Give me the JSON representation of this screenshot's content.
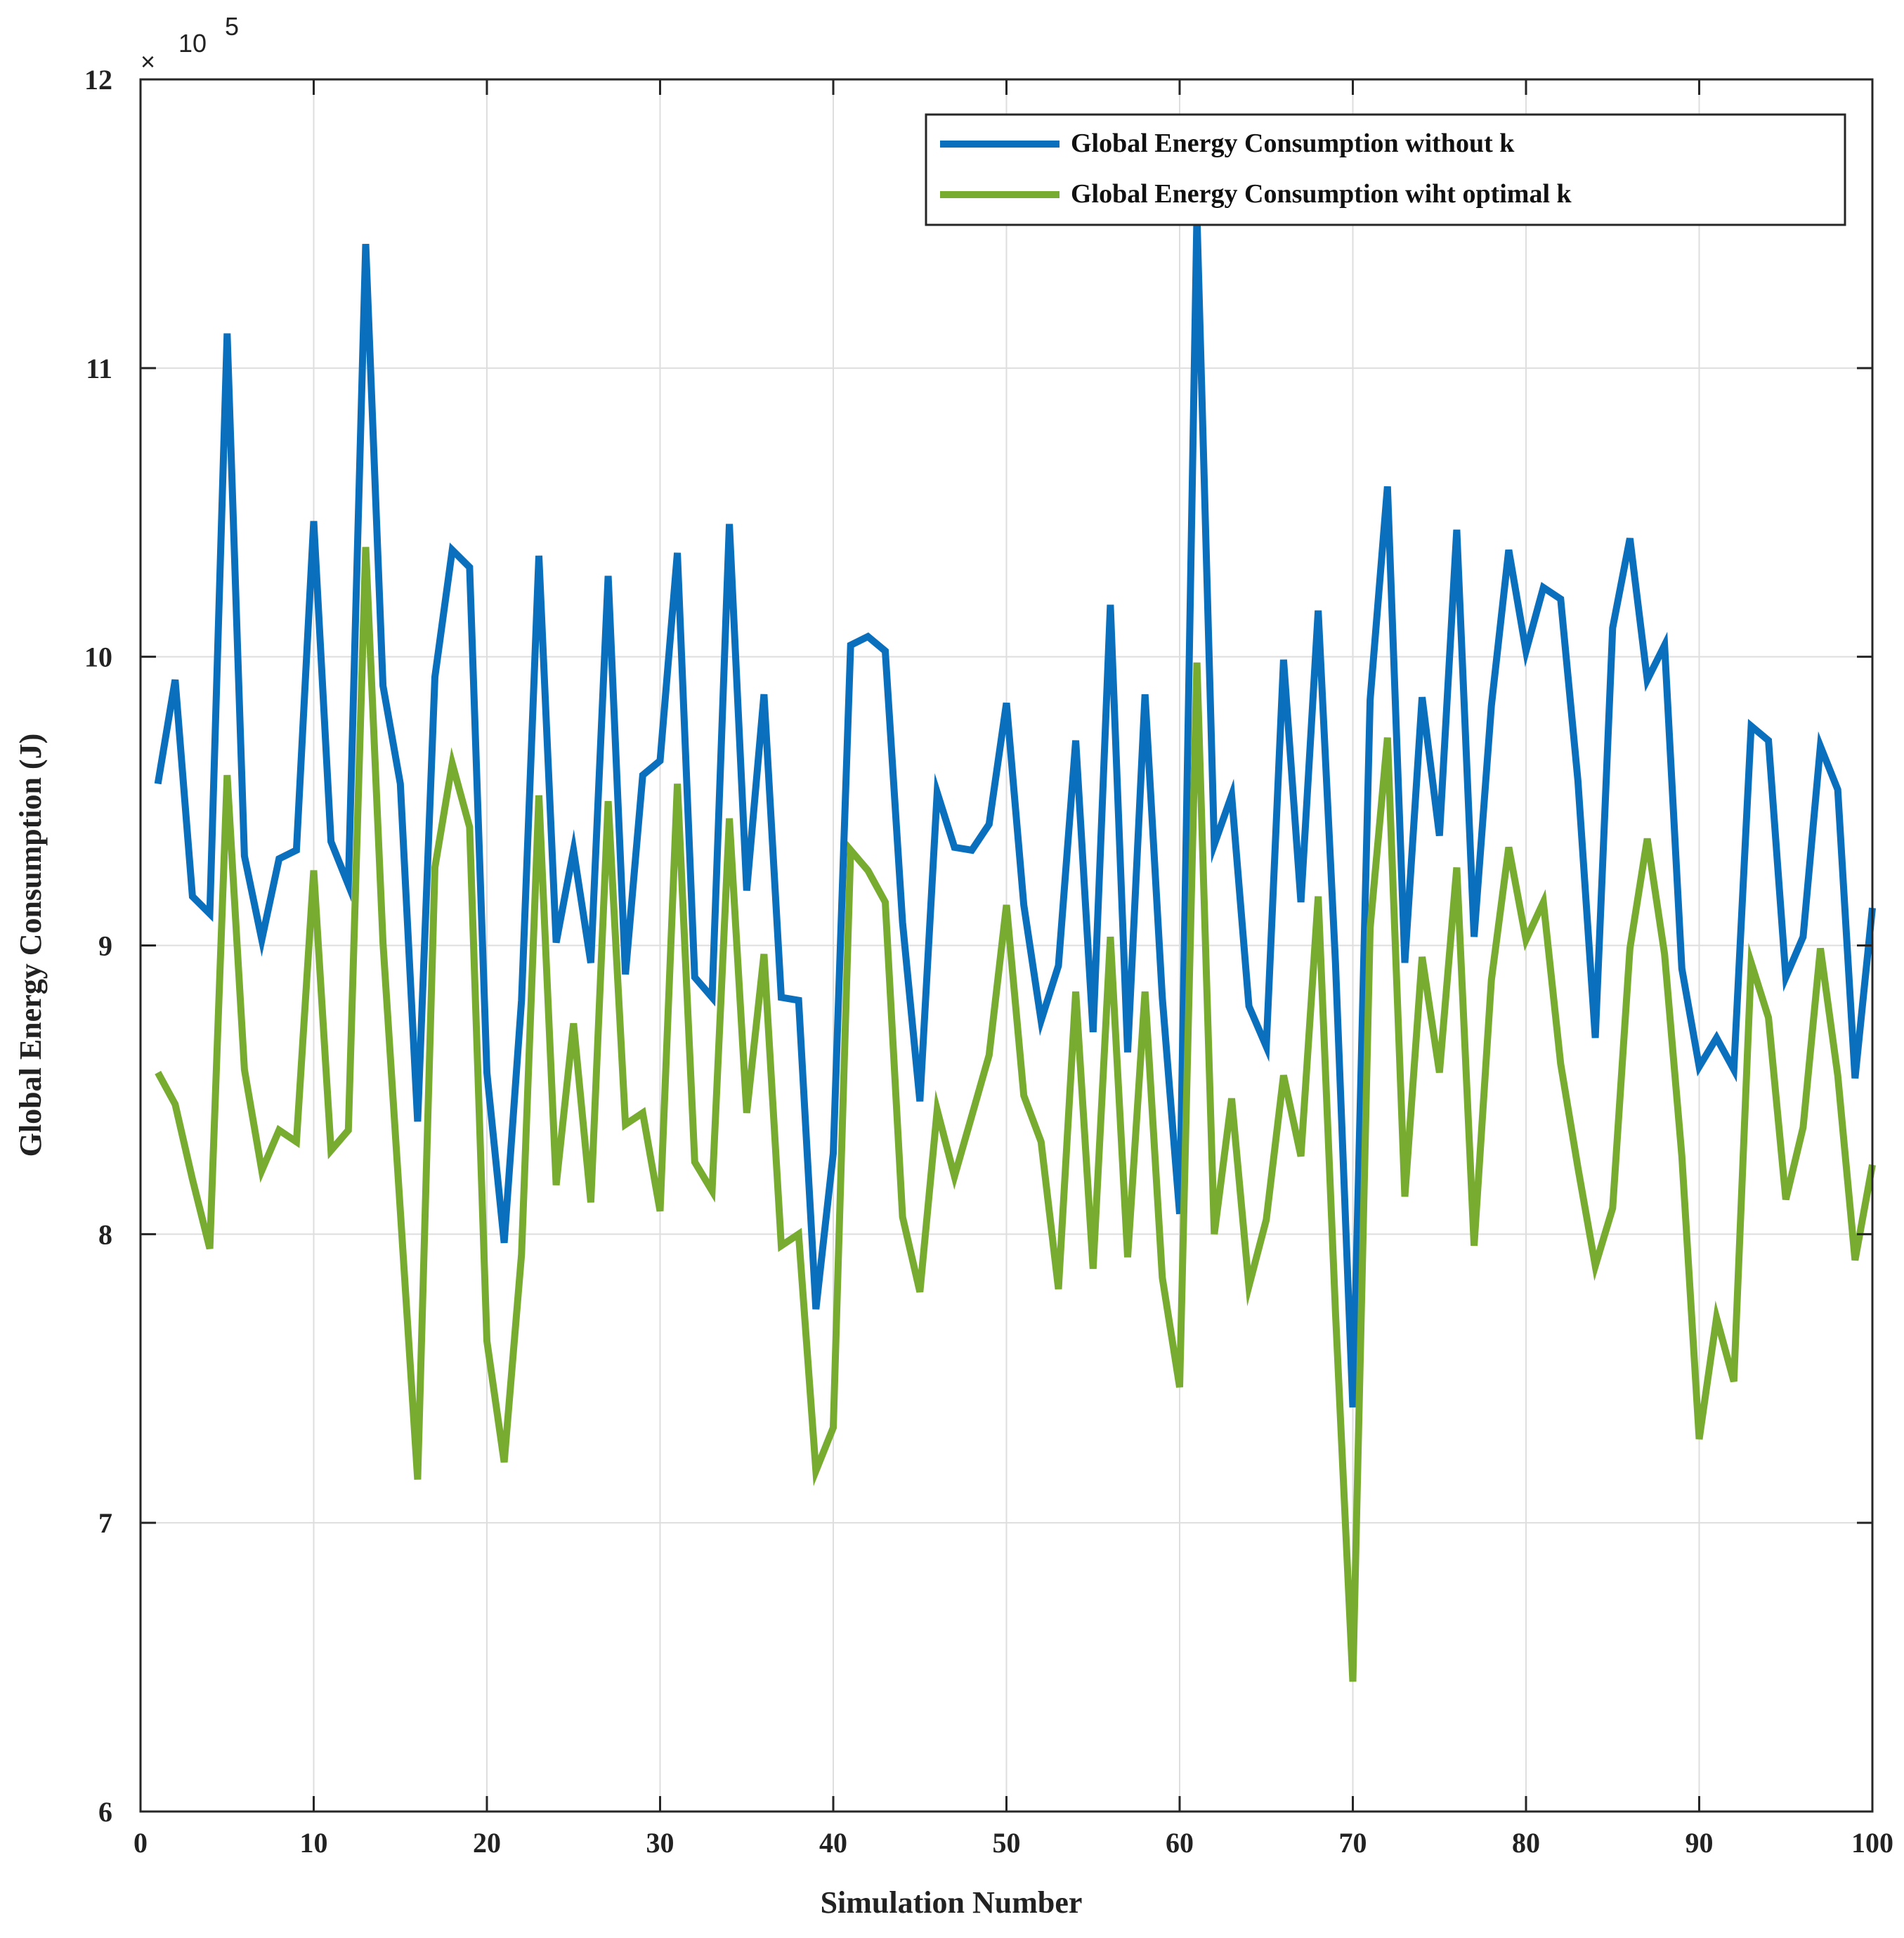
{
  "chart_data": {
    "type": "line",
    "title": "",
    "xlabel": "Simulation Number",
    "ylabel": "Global Energy Consumption (J)",
    "xlim": [
      0,
      100
    ],
    "ylim": [
      6,
      12
    ],
    "y_multiplier": {
      "base": "10",
      "exponent": "5",
      "symbol": "×"
    },
    "xticks": [
      0,
      10,
      20,
      30,
      40,
      50,
      60,
      70,
      80,
      90,
      100
    ],
    "yticks": [
      6,
      7,
      8,
      9,
      10,
      11,
      12
    ],
    "grid": true,
    "legend_position": "top-right",
    "series": [
      {
        "name": "Global Energy Consumption without k",
        "color": "#0a6fbd",
        "x": [
          1,
          2,
          3,
          4,
          5,
          6,
          7,
          8,
          9,
          10,
          11,
          12,
          13,
          14,
          15,
          16,
          17,
          18,
          19,
          20,
          21,
          22,
          23,
          24,
          25,
          26,
          27,
          28,
          29,
          30,
          31,
          32,
          33,
          34,
          35,
          36,
          37,
          38,
          39,
          40,
          41,
          42,
          43,
          44,
          45,
          46,
          47,
          48,
          49,
          50,
          51,
          52,
          53,
          54,
          55,
          56,
          57,
          58,
          59,
          60,
          61,
          62,
          63,
          64,
          65,
          66,
          67,
          68,
          69,
          70,
          71,
          72,
          73,
          74,
          75,
          76,
          77,
          78,
          79,
          80,
          81,
          82,
          83,
          84,
          85,
          86,
          87,
          88,
          89,
          90,
          91,
          92,
          93,
          94,
          95,
          96,
          97,
          98,
          99,
          100
        ],
        "values": [
          9.56,
          9.92,
          9.17,
          9.11,
          11.12,
          9.31,
          9.02,
          9.3,
          9.33,
          10.47,
          9.36,
          9.21,
          11.43,
          9.9,
          9.56,
          8.39,
          9.93,
          10.37,
          10.31,
          8.56,
          7.97,
          8.81,
          10.35,
          9.01,
          9.33,
          8.94,
          10.28,
          8.9,
          9.59,
          9.64,
          10.36,
          8.89,
          8.82,
          10.46,
          9.19,
          9.87,
          8.82,
          8.81,
          7.74,
          8.28,
          10.04,
          10.07,
          10.02,
          9.08,
          8.46,
          9.53,
          9.34,
          9.33,
          9.42,
          9.84,
          9.14,
          8.74,
          8.93,
          9.71,
          8.7,
          10.18,
          8.63,
          9.87,
          8.82,
          8.07,
          11.53,
          9.35,
          9.52,
          8.79,
          8.65,
          9.99,
          9.15,
          10.16,
          8.94,
          7.4,
          9.85,
          10.59,
          8.94,
          9.86,
          9.38,
          10.44,
          9.03,
          9.83,
          10.37,
          10.02,
          10.24,
          10.2,
          9.57,
          8.68,
          10.1,
          10.41,
          9.92,
          10.04,
          8.92,
          8.58,
          8.68,
          8.57,
          9.76,
          9.71,
          8.89,
          9.03,
          9.69,
          9.54,
          8.54,
          9.13
        ]
      },
      {
        "name": "Global Energy Consumption wiht optimal k",
        "color": "#77ac30",
        "x": [
          1,
          2,
          3,
          4,
          5,
          6,
          7,
          8,
          9,
          10,
          11,
          12,
          13,
          14,
          15,
          16,
          17,
          18,
          19,
          20,
          21,
          22,
          23,
          24,
          25,
          26,
          27,
          28,
          29,
          30,
          31,
          32,
          33,
          34,
          35,
          36,
          37,
          38,
          39,
          40,
          41,
          42,
          43,
          44,
          45,
          46,
          47,
          48,
          49,
          50,
          51,
          52,
          53,
          54,
          55,
          56,
          57,
          58,
          59,
          60,
          61,
          62,
          63,
          64,
          65,
          66,
          67,
          68,
          69,
          70,
          71,
          72,
          73,
          74,
          75,
          76,
          77,
          78,
          79,
          80,
          81,
          82,
          83,
          84,
          85,
          86,
          87,
          88,
          89,
          90,
          91,
          92,
          93,
          94,
          95,
          96,
          97,
          98,
          99,
          100
        ],
        "values": [
          8.56,
          8.45,
          8.19,
          7.95,
          9.59,
          8.57,
          8.22,
          8.36,
          8.32,
          9.26,
          8.29,
          8.36,
          10.38,
          9.01,
          8.08,
          7.15,
          9.27,
          9.63,
          9.41,
          7.63,
          7.21,
          7.93,
          9.52,
          8.17,
          8.73,
          8.11,
          9.5,
          8.38,
          8.42,
          8.08,
          9.56,
          8.25,
          8.15,
          9.44,
          8.42,
          8.97,
          7.96,
          8.0,
          7.18,
          7.33,
          9.33,
          9.26,
          9.15,
          8.06,
          7.8,
          8.43,
          8.2,
          8.41,
          8.62,
          9.14,
          8.48,
          8.32,
          7.81,
          8.84,
          7.88,
          9.03,
          7.92,
          8.84,
          7.85,
          7.47,
          9.98,
          8.0,
          8.47,
          7.82,
          8.05,
          8.55,
          8.27,
          9.17,
          7.73,
          6.45,
          9.06,
          9.72,
          8.13,
          8.96,
          8.56,
          9.27,
          7.96,
          8.88,
          9.34,
          9.02,
          9.15,
          8.59,
          8.23,
          7.89,
          8.09,
          8.99,
          9.37,
          8.97,
          8.27,
          7.29,
          7.71,
          7.49,
          8.94,
          8.75,
          8.12,
          8.37,
          8.99,
          8.55,
          7.91,
          8.24
        ]
      }
    ]
  }
}
